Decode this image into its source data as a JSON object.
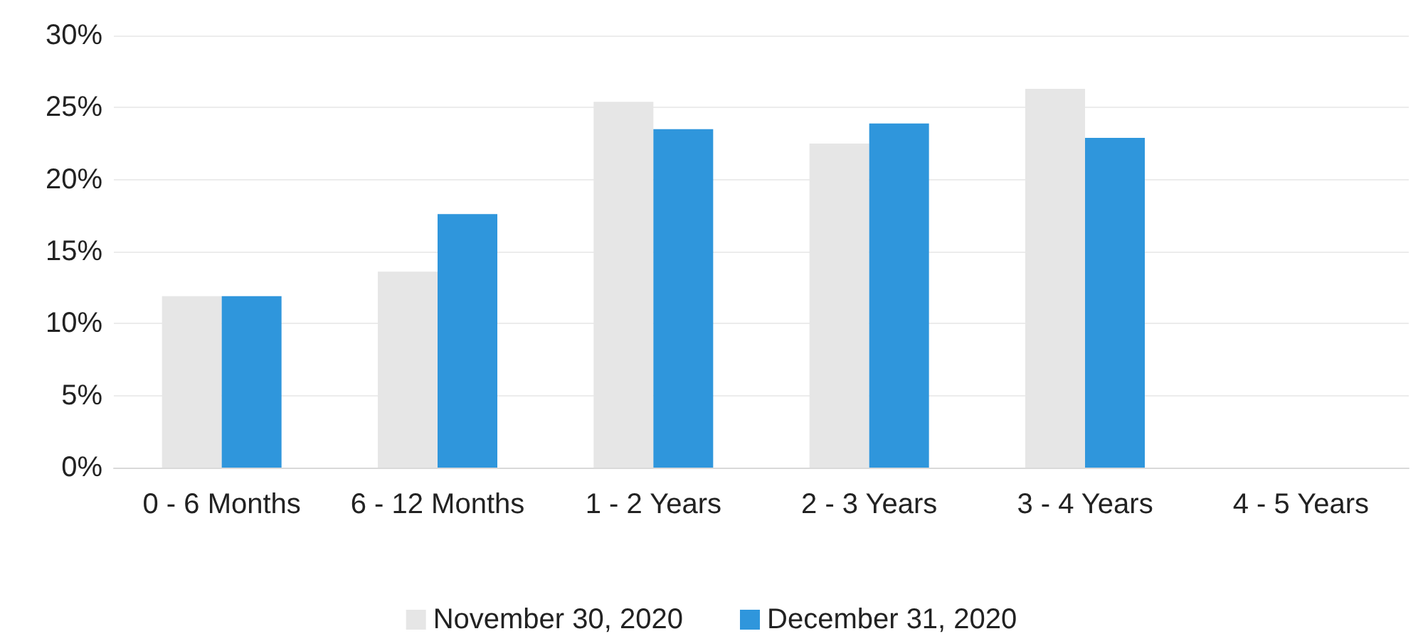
{
  "chart_data": {
    "type": "bar",
    "categories": [
      "0 - 6 Months",
      "6 - 12 Months",
      "1 - 2 Years",
      "2 - 3 Years",
      "3 - 4 Years",
      "4 - 5 Years"
    ],
    "series": [
      {
        "name": "November 30, 2020",
        "color": "#e6e6e6",
        "values": [
          11.9,
          13.6,
          25.4,
          22.5,
          26.3,
          null
        ]
      },
      {
        "name": "December 31, 2020",
        "color": "#2f96dc",
        "values": [
          11.9,
          17.6,
          23.5,
          23.9,
          22.9,
          null
        ]
      }
    ],
    "ylim": [
      0,
      30
    ],
    "yticks": [
      {
        "value": 0,
        "label": "0%"
      },
      {
        "value": 5,
        "label": "5%"
      },
      {
        "value": 10,
        "label": "10%"
      },
      {
        "value": 15,
        "label": "15%"
      },
      {
        "value": 20,
        "label": "20%"
      },
      {
        "value": 25,
        "label": "25%"
      },
      {
        "value": 30,
        "label": "30%"
      }
    ],
    "grid": "y",
    "legend": "bottom"
  }
}
